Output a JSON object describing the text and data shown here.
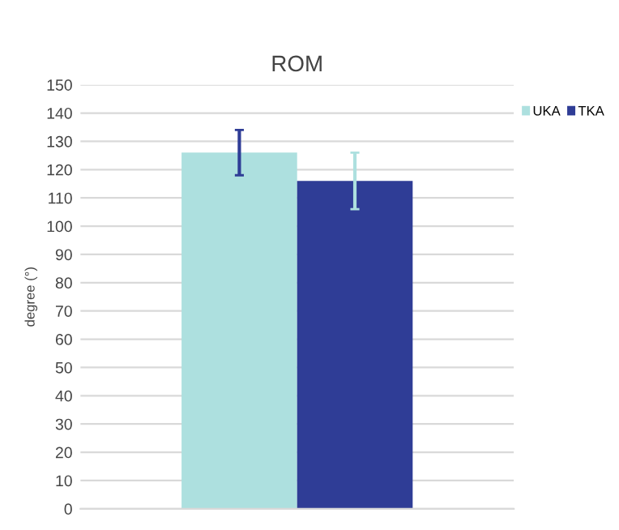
{
  "chart_data": {
    "type": "bar",
    "title": "ROM",
    "ylabel": "degree (°)",
    "categories": [
      null
    ],
    "series": [
      {
        "name": "UKA",
        "color": "#ade0df",
        "values": [
          126
        ],
        "errors": [
          8
        ]
      },
      {
        "name": "TKA",
        "color": "#2f3d96",
        "values": [
          116
        ],
        "errors": [
          10
        ]
      }
    ],
    "ylim": [
      0,
      150
    ],
    "yticks": [
      0,
      10,
      20,
      30,
      40,
      50,
      60,
      70,
      80,
      90,
      100,
      110,
      120,
      130,
      140,
      150
    ],
    "grid": "y",
    "legend": "top right"
  }
}
